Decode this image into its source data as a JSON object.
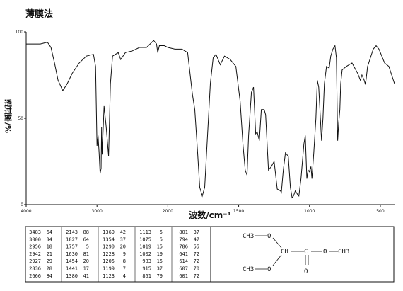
{
  "title": "薄膜法",
  "chart_data": {
    "type": "line",
    "y_label": "透过率/%",
    "x_label": "波数/cm⁻¹",
    "color": "#111111",
    "xlim": [
      4000,
      400
    ],
    "x_scale_change": 2000,
    "xticks": [
      4000,
      3000,
      2000,
      1500,
      1000,
      500
    ],
    "ylim": [
      0,
      100
    ],
    "yticks": [
      0,
      50,
      100
    ],
    "x": [
      4000,
      3800,
      3700,
      3650,
      3600,
      3550,
      3483,
      3420,
      3350,
      3250,
      3150,
      3050,
      3020,
      3000,
      2985,
      2970,
      2956,
      2942,
      2935,
      2927,
      2900,
      2870,
      2836,
      2810,
      2780,
      2700,
      2666,
      2600,
      2500,
      2400,
      2300,
      2250,
      2200,
      2160,
      2143,
      2120,
      2050,
      2000,
      1950,
      1900,
      1860,
      1827,
      1810,
      1790,
      1775,
      1757,
      1740,
      1720,
      1700,
      1680,
      1660,
      1630,
      1600,
      1560,
      1520,
      1490,
      1470,
      1454,
      1441,
      1430,
      1410,
      1395,
      1380,
      1369,
      1354,
      1340,
      1320,
      1310,
      1290,
      1270,
      1250,
      1228,
      1205,
      1199,
      1185,
      1170,
      1150,
      1135,
      1123,
      1113,
      1100,
      1085,
      1075,
      1060,
      1040,
      1030,
      1019,
      1010,
      1002,
      990,
      983,
      970,
      955,
      945,
      935,
      915,
      905,
      895,
      880,
      861,
      850,
      835,
      820,
      810,
      801,
      794,
      786,
      780,
      770,
      740,
      700,
      680,
      660,
      641,
      630,
      614,
      607,
      601,
      590,
      570,
      550,
      530,
      510,
      490,
      470,
      440,
      420,
      400
    ],
    "values": [
      93,
      93,
      94,
      91,
      82,
      72,
      66,
      70,
      76,
      82,
      86,
      87,
      80,
      34,
      40,
      30,
      18,
      21,
      45,
      29,
      57,
      45,
      28,
      70,
      86,
      88,
      84,
      88,
      89,
      91,
      91,
      93,
      95,
      93,
      88,
      92,
      92,
      91,
      90,
      90,
      88,
      64,
      55,
      30,
      10,
      5,
      10,
      40,
      70,
      85,
      87,
      81,
      86,
      84,
      80,
      60,
      35,
      20,
      17,
      40,
      65,
      68,
      41,
      42,
      37,
      55,
      55,
      52,
      20,
      22,
      25,
      9,
      8,
      7,
      20,
      30,
      28,
      10,
      4,
      5,
      8,
      6,
      5,
      15,
      35,
      40,
      15,
      20,
      19,
      22,
      15,
      30,
      50,
      72,
      68,
      37,
      50,
      70,
      80,
      79,
      86,
      90,
      92,
      85,
      37,
      47,
      55,
      70,
      78,
      80,
      82,
      79,
      76,
      72,
      75,
      72,
      70,
      72,
      80,
      85,
      90,
      92,
      90,
      86,
      82,
      80,
      75,
      70
    ]
  },
  "peak_table": [
    [
      3483,
      64
    ],
    [
      3000,
      34
    ],
    [
      2956,
      18
    ],
    [
      2942,
      21
    ],
    [
      2927,
      29
    ],
    [
      2836,
      28
    ],
    [
      2666,
      84
    ],
    [
      2143,
      88
    ],
    [
      1827,
      64
    ],
    [
      1757,
      5
    ],
    [
      1630,
      81
    ],
    [
      1454,
      20
    ],
    [
      1441,
      17
    ],
    [
      1380,
      41
    ],
    [
      1369,
      42
    ],
    [
      1354,
      37
    ],
    [
      1290,
      20
    ],
    [
      1228,
      9
    ],
    [
      1205,
      8
    ],
    [
      1199,
      7
    ],
    [
      1123,
      4
    ],
    [
      1113,
      5
    ],
    [
      1075,
      5
    ],
    [
      1019,
      15
    ],
    [
      1002,
      19
    ],
    [
      983,
      15
    ],
    [
      915,
      37
    ],
    [
      861,
      79
    ],
    [
      801,
      37
    ],
    [
      794,
      47
    ],
    [
      786,
      55
    ],
    [
      641,
      72
    ],
    [
      614,
      72
    ],
    [
      607,
      70
    ],
    [
      601,
      72
    ]
  ],
  "structure": {
    "atoms": [
      "CH3",
      "O",
      "CH",
      "C",
      "O",
      "CH3",
      "O",
      "CH3",
      "O"
    ]
  }
}
